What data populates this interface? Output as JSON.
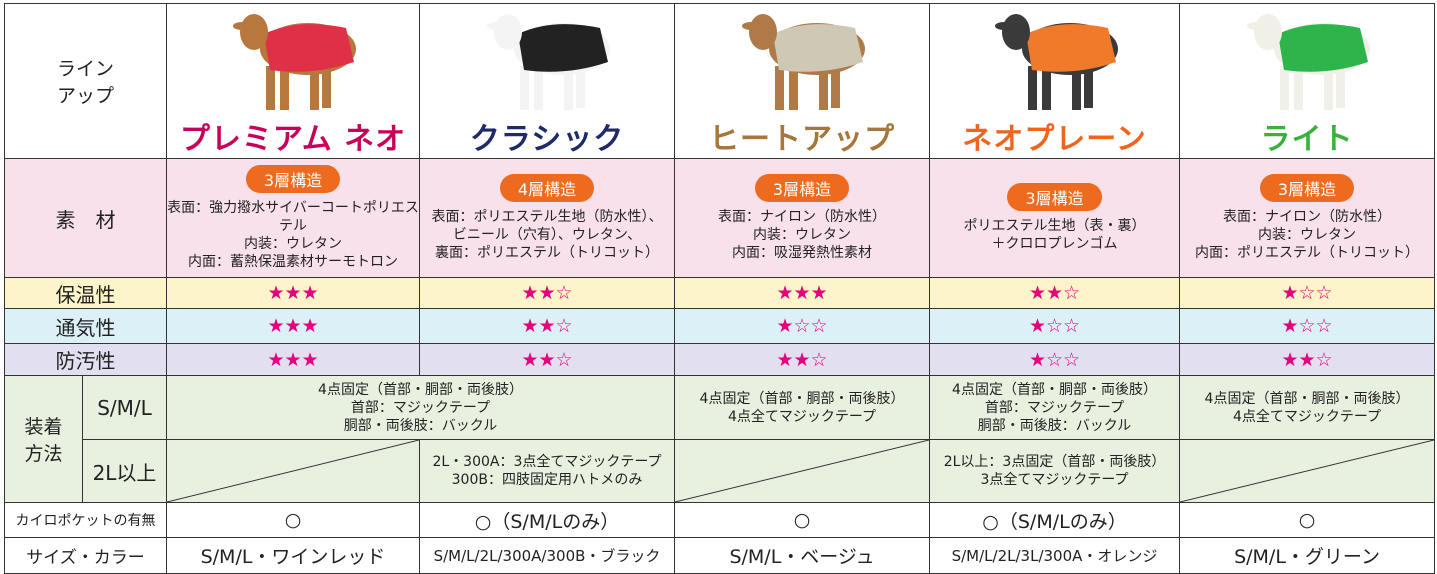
{
  "labels": {
    "lineup": [
      "ライン",
      "アップ"
    ],
    "material": "素　材",
    "warmth": "保温性",
    "breathability": "通気性",
    "stain": "防汚性",
    "attach": [
      "装着",
      "方法"
    ],
    "sml": "S/M/L",
    "over2l": "2L以上",
    "pocket": "カイロポケットの有無",
    "size": "サイズ・カラー"
  },
  "products": [
    {
      "name": "プレミアム ネオ",
      "layers": "3層構造",
      "material": [
        "表面：強力撥水サイバーコートポリエステル",
        "内装：ウレタン",
        "内面：蓄熱保温素材サーモトロン"
      ],
      "warmth": "★★★",
      "breathability": "★★★",
      "stain": "★★★",
      "pocket": "○",
      "size": "S/M/L・ワインレッド"
    },
    {
      "name": "クラシック",
      "layers": "4層構造",
      "material": [
        "表面：ポリエステル生地（防水性）、",
        "ビニール（穴有）、ウレタン、",
        "裏面：ポリエステル（トリコット）"
      ],
      "warmth": "★★☆",
      "breathability": "★★☆",
      "stain": "★★☆",
      "pocket": "○（S/M/Lのみ）",
      "size": "S/M/L/2L/300A/300B・ブラック"
    },
    {
      "name": "ヒートアップ",
      "layers": "3層構造",
      "material": [
        "表面：ナイロン（防水性）",
        "内装：ウレタン",
        "内面：吸湿発熱性素材"
      ],
      "warmth": "★★★",
      "breathability": "★☆☆",
      "stain": "★★☆",
      "pocket": "○",
      "size": "S/M/L・ベージュ"
    },
    {
      "name": "ネオプレーン",
      "layers": "3層構造",
      "material": [
        "ポリエステル生地（表・裏）",
        "＋クロロプレンゴム"
      ],
      "warmth": "★★☆",
      "breathability": "★☆☆",
      "stain": "★☆☆",
      "pocket": "○（S/M/Lのみ）",
      "size": "S/M/L/2L/3L/300A・オレンジ"
    },
    {
      "name": "ライト",
      "layers": "3層構造",
      "material": [
        "表面：ナイロン（防水性）",
        "内装：ウレタン",
        "内面：ポリエステル（トリコット）"
      ],
      "warmth": "★☆☆",
      "breathability": "★☆☆",
      "stain": "★★☆",
      "pocket": "○",
      "size": "S/M/L・グリーン"
    }
  ],
  "attach_sml": [
    [
      "4点固定（首部・胴部・両後肢）",
      "首部：マジックテープ",
      "胴部・両後肢：バックル"
    ],
    [
      "4点固定（首部・胴部・両後肢）",
      "4点全てマジックテープ"
    ],
    [
      "4点固定（首部・胴部・両後肢）",
      "首部：マジックテープ",
      "胴部・両後肢：バックル"
    ],
    [
      "4点固定（首部・胴部・両後肢）",
      "4点全てマジックテープ"
    ]
  ],
  "attach_2l": [
    [
      "2L・300A：3点全てマジックテープ",
      "300B：四肢固定用ハトメのみ"
    ],
    [
      "2L以上：3点固定（首部・両後肢）",
      "3点全てマジックテープ"
    ]
  ]
}
